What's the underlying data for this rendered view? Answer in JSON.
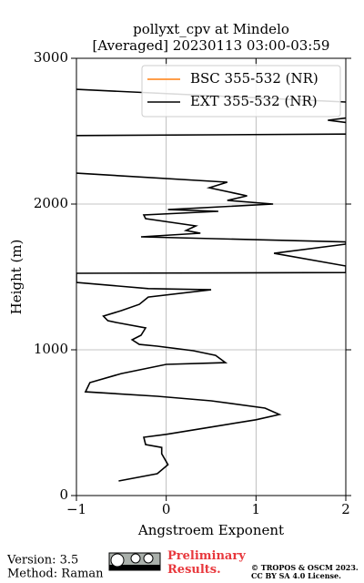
{
  "chart_data": {
    "type": "profile",
    "title": "pollyxt_cpv at Mindelo",
    "subtitle": "[Averaged] 20230113 03:00-03:59",
    "x_label": "Angstroem Exponent",
    "y_label": "Height (m)",
    "xlim": [
      -1,
      2
    ],
    "xticks": [
      {
        "value": -1,
        "label": "−1"
      },
      0,
      1,
      2
    ],
    "ylim": [
      0,
      3000
    ],
    "yticks": [
      0,
      1000,
      2000,
      3000
    ],
    "grid": true,
    "legend": "upper right",
    "series": [
      {
        "name": "BSC 355-532 (NR)",
        "color": "#ff7f0e",
        "x": [],
        "values": []
      },
      {
        "name": "EXT 355-532 (NR)",
        "color": "#000000",
        "x": [
          -0.53,
          -0.1,
          0.02,
          -0.05,
          -0.05,
          -0.23,
          -0.25,
          0.0,
          0.5,
          1.0,
          1.26,
          1.1,
          0.5,
          -0.1,
          -0.9,
          -0.85,
          -0.5,
          0.0,
          0.66,
          0.55,
          0.3,
          -0.1,
          -0.3,
          -0.38,
          -0.28,
          -0.23,
          -0.55,
          -0.65,
          -0.7,
          -0.5,
          -0.3,
          -0.2,
          0.5,
          -0.2,
          -1.0,
          -1.0,
          2.0,
          2.0,
          1.2,
          2.0,
          2.0,
          -0.28,
          0.38,
          0.22,
          0.33,
          -0.23,
          -0.25,
          0.58,
          0.02,
          1.19,
          0.68,
          0.9,
          0.48,
          0.68,
          -1.0,
          null,
          -1.0,
          2.0,
          null,
          2.0,
          1.8,
          2.0,
          null,
          2.0,
          -1.0
        ],
        "values": [
          100,
          150,
          212,
          287,
          330,
          350,
          400,
          420,
          470,
          520,
          556,
          600,
          650,
          681,
          712,
          775,
          837,
          900,
          912,
          962,
          994,
          1025,
          1037,
          1069,
          1100,
          1150,
          1187,
          1200,
          1231,
          1269,
          1312,
          1362,
          1412,
          1420,
          1462,
          1525,
          1530,
          1575,
          1662,
          1725,
          1740,
          1775,
          1800,
          1819,
          1850,
          1900,
          1925,
          1950,
          1962,
          2000,
          2025,
          2056,
          2112,
          2150,
          2212,
          null,
          2470,
          2480,
          null,
          2560,
          2575,
          2590,
          null,
          2700,
          2787
        ]
      }
    ]
  },
  "footer": {
    "version": "Version: 3.5",
    "method": "Method: Raman",
    "preliminary": "Preliminary Results.",
    "copyright": "© TROPOS & OSCM 2023.",
    "license": "CC BY SA 4.0 License."
  }
}
